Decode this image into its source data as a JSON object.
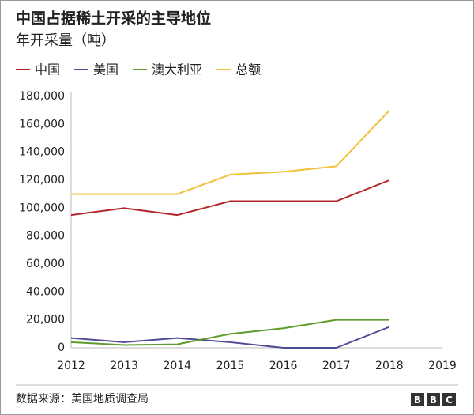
{
  "chart_data": {
    "type": "line",
    "title": "中国占据稀土开采的主导地位",
    "subtitle": "年开采量（吨）",
    "x": [
      2012,
      2013,
      2014,
      2015,
      2016,
      2017,
      2018
    ],
    "xlim": [
      2012,
      2019
    ],
    "xticks": [
      2012,
      2013,
      2014,
      2015,
      2016,
      2017,
      2018,
      2019
    ],
    "ylim": [
      0,
      180000
    ],
    "yticks": [
      0,
      {
        "value": 20000,
        "label": "20,000"
      },
      {
        "value": 40000,
        "label": "40,000"
      },
      {
        "value": 60000,
        "label": "60,000"
      },
      {
        "value": 80000,
        "label": "80,000"
      },
      {
        "value": 100000,
        "label": "100,000"
      },
      {
        "value": 120000,
        "label": "120,000"
      },
      {
        "value": 140000,
        "label": "140,000"
      },
      {
        "value": 160000,
        "label": "160,000"
      },
      {
        "value": 180000,
        "label": "180,000"
      }
    ],
    "grid": false,
    "series": [
      {
        "name": "中国",
        "color": "#b5262c",
        "values": [
          95000,
          100000,
          95000,
          105000,
          105000,
          105000,
          120000
        ]
      },
      {
        "name": "美国",
        "color": "#4e4b96",
        "values": [
          7000,
          4000,
          7000,
          4000,
          0,
          0,
          15000
        ]
      },
      {
        "name": "澳大利亚",
        "color": "#5e9a2c",
        "values": [
          4000,
          2000,
          2500,
          10000,
          14000,
          20000,
          20000
        ]
      },
      {
        "name": "总额",
        "color": "#f2c13a",
        "values": [
          110000,
          110000,
          110000,
          124000,
          126000,
          130000,
          170000
        ]
      }
    ],
    "source": "数据来源：美国地质调查局",
    "logo": [
      "B",
      "B",
      "C"
    ]
  }
}
